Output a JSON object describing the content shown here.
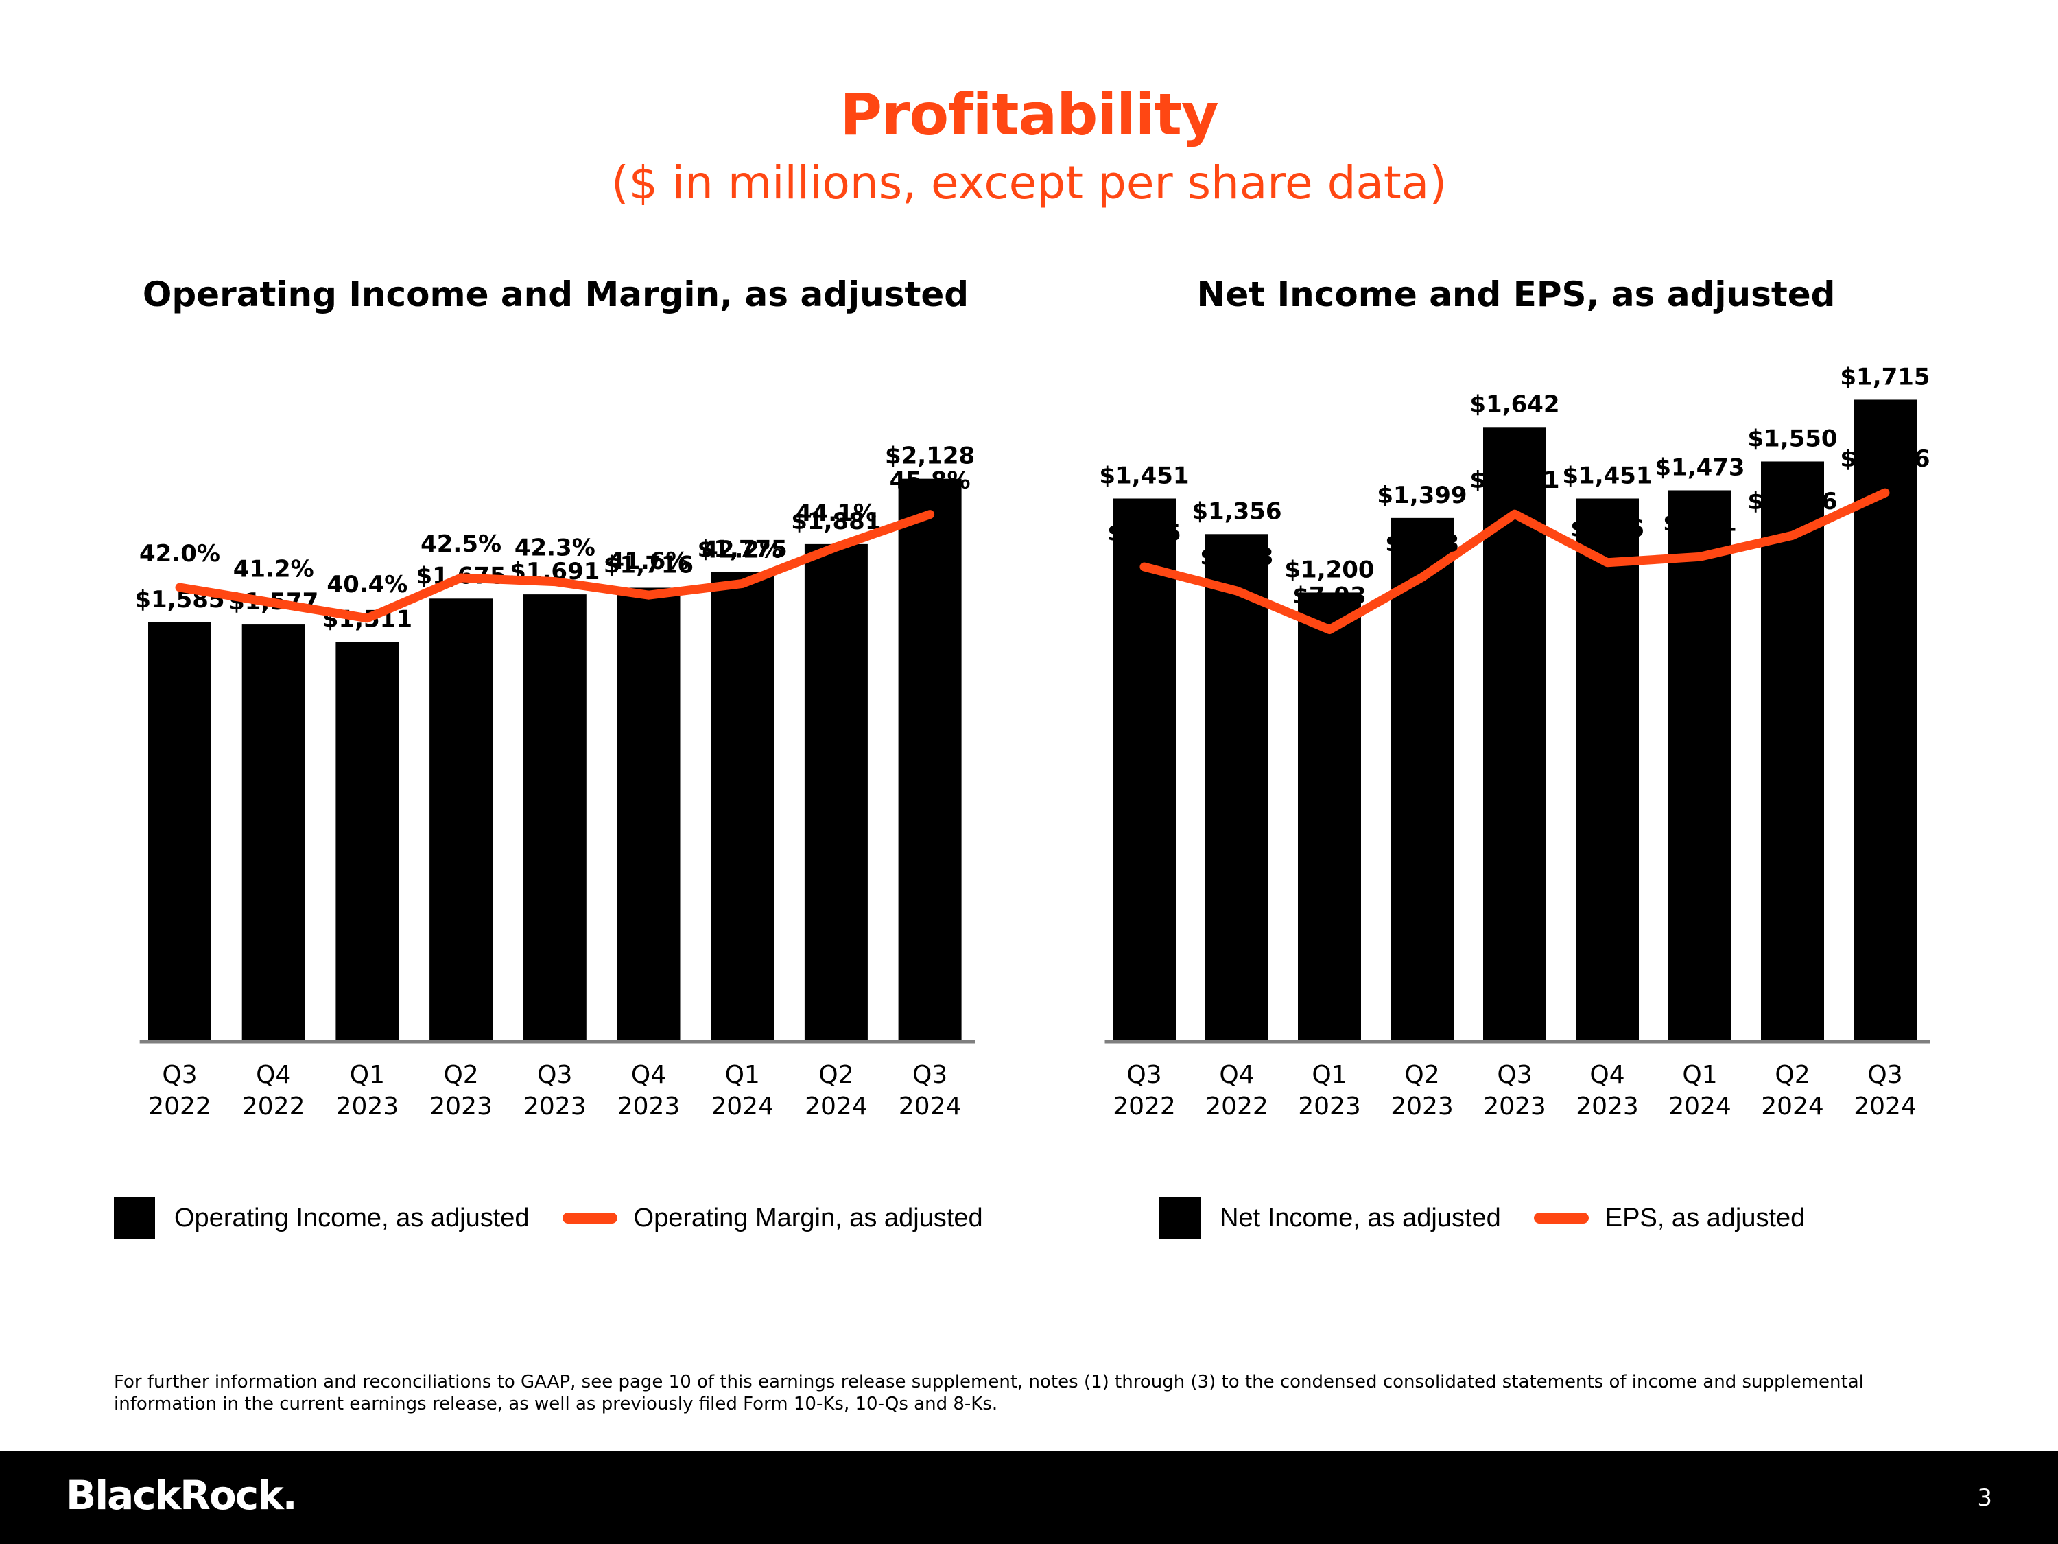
{
  "page": {
    "title": "Profitability",
    "subtitle": "($ in millions, except per share data)",
    "footnote": "For further information and reconciliations to GAAP, see page 10 of this earnings release supplement, notes (1) through (3) to the condensed consolidated statements of income and supplemental information in the current earnings release, as well as previously filed Form 10-Ks, 10-Qs and 8-Ks.",
    "logo_text": "BlackRock.",
    "page_number": "3"
  },
  "colors": {
    "accent": "#FF4713",
    "bar": "#000000",
    "axis": "#7f7f7f"
  },
  "chart_data": [
    {
      "type": "bar",
      "title": "Operating Income and Margin, as adjusted",
      "categories": [
        "Q3 2022",
        "Q4 2022",
        "Q1 2023",
        "Q2 2023",
        "Q3 2023",
        "Q4 2023",
        "Q1 2024",
        "Q2 2024",
        "Q3 2024"
      ],
      "series": [
        {
          "name": "Operating Income, as adjusted",
          "type": "bar",
          "values": [
            1585,
            1577,
            1511,
            1675,
            1691,
            1716,
            1775,
            1881,
            2128
          ],
          "labels": [
            "$1,585",
            "$1,577",
            "$1,511",
            "$1,675",
            "$1,691",
            "$1,716",
            "$1,775",
            "$1,881",
            "$2,128"
          ]
        },
        {
          "name": "Operating Margin, as adjusted",
          "type": "line",
          "values": [
            42.0,
            41.2,
            40.4,
            42.5,
            42.3,
            41.6,
            42.2,
            44.1,
            45.8
          ],
          "labels": [
            "42.0%",
            "41.2%",
            "40.4%",
            "42.5%",
            "42.3%",
            "41.6%",
            "42.2%",
            "44.1%",
            "45.8%"
          ]
        }
      ],
      "legend_placement": "bottom",
      "grid": false
    },
    {
      "type": "bar",
      "title": "Net Income and EPS, as adjusted",
      "categories": [
        "Q3 2022",
        "Q4 2022",
        "Q1 2023",
        "Q2 2023",
        "Q3 2023",
        "Q4 2023",
        "Q1 2024",
        "Q2 2024",
        "Q3 2024"
      ],
      "series": [
        {
          "name": "Net Income, as adjusted",
          "type": "bar",
          "values": [
            1451,
            1356,
            1200,
            1399,
            1642,
            1451,
            1473,
            1550,
            1715
          ],
          "labels": [
            "$1,451",
            "$1,356",
            "$1,200",
            "$1,399",
            "$1,642",
            "$1,451",
            "$1,473",
            "$1,550",
            "$1,715"
          ]
        },
        {
          "name": "EPS, as adjusted",
          "type": "line",
          "values": [
            9.55,
            8.93,
            7.93,
            9.28,
            10.91,
            9.66,
            9.81,
            10.36,
            11.46
          ],
          "labels": [
            "$9.55",
            "$8.93",
            "$7.93",
            "$9.28",
            "$10.91",
            "$9.66",
            "$9.81",
            "$10.36",
            "$11.46"
          ]
        }
      ],
      "legend_placement": "bottom",
      "grid": false
    }
  ]
}
